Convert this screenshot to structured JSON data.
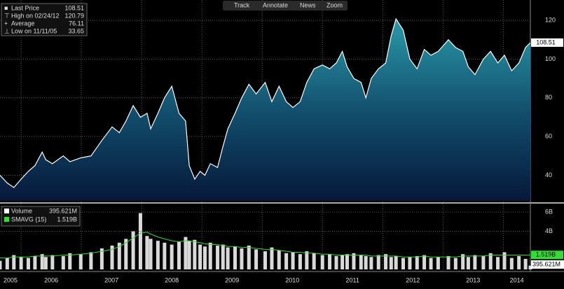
{
  "toolbar": [
    "Track",
    "Annotate",
    "News",
    "Zoom"
  ],
  "chart_data": [
    {
      "type": "area",
      "legend": [
        {
          "label": "Last Price",
          "value": 108.51
        },
        {
          "label": "High on 02/24/12",
          "value": 120.79
        },
        {
          "label": "Average",
          "value": 76.11
        },
        {
          "label": "Low on 11/11/05",
          "value": 33.65
        }
      ],
      "x": [
        2005.65,
        2005.77,
        2005.88,
        2006.0,
        2006.12,
        2006.23,
        2006.35,
        2006.41,
        2006.52,
        2006.7,
        2006.81,
        2006.99,
        2007.16,
        2007.34,
        2007.51,
        2007.63,
        2007.74,
        2007.86,
        2007.98,
        2008.09,
        2008.15,
        2008.27,
        2008.38,
        2008.5,
        2008.62,
        2008.73,
        2008.79,
        2008.88,
        2008.97,
        2009.05,
        2009.14,
        2009.26,
        2009.35,
        2009.43,
        2009.55,
        2009.66,
        2009.78,
        2009.9,
        2010.05,
        2010.16,
        2010.28,
        2010.4,
        2010.51,
        2010.63,
        2010.74,
        2010.86,
        2011.0,
        2011.12,
        2011.23,
        2011.33,
        2011.41,
        2011.52,
        2011.64,
        2011.72,
        2011.81,
        2011.93,
        2012.05,
        2012.14,
        2012.22,
        2012.34,
        2012.45,
        2012.57,
        2012.69,
        2012.8,
        2012.92,
        2013.09,
        2013.21,
        2013.33,
        2013.42,
        2013.53,
        2013.67,
        2013.79,
        2013.91,
        2014.02,
        2014.14,
        2014.26,
        2014.37,
        2014.45
      ],
      "series": [
        {
          "name": "Last Price",
          "color": "#ffffff",
          "values": [
            40,
            36,
            33.65,
            38,
            42,
            45,
            52,
            48,
            46,
            50,
            47,
            49,
            50,
            58,
            65,
            62,
            68,
            76,
            70,
            72,
            64,
            72,
            80,
            86,
            72,
            68,
            45,
            38,
            42,
            40,
            46,
            44,
            55,
            64,
            72,
            80,
            87,
            82,
            88,
            78,
            86,
            78,
            75,
            78,
            88,
            95,
            97,
            95,
            98,
            104,
            96,
            90,
            88,
            80,
            90,
            95,
            98,
            112,
            120.79,
            115,
            100,
            95,
            105,
            102,
            104,
            110,
            106,
            104,
            96,
            92,
            100,
            104,
            98,
            102,
            94,
            98,
            106,
            108.51
          ]
        }
      ],
      "xlim": [
        2005.65,
        2014.45
      ],
      "xticks": [
        2005,
        2006,
        2007,
        2008,
        2009,
        2010,
        2011,
        2012,
        2013,
        2014
      ],
      "ylim": [
        26.8,
        129.8
      ],
      "yticks": [
        40,
        60,
        80,
        100,
        120
      ],
      "grid": true
    },
    {
      "type": "bar",
      "legend": [
        {
          "label": "Volume",
          "value": "395.621M"
        },
        {
          "label": "SMAVG (15)",
          "value": "1.519B"
        }
      ],
      "series": [
        {
          "name": "Volume",
          "color": "#ffffff",
          "values": [
            0.9,
            1.2,
            1.5,
            1.3,
            1.2,
            1.4,
            1.6,
            1.3,
            1.5,
            1.4,
            1.7,
            1.6,
            1.8,
            2.2,
            2.5,
            2.8,
            3.2,
            4.0,
            5.9,
            3.5,
            3.2,
            3.0,
            2.8,
            2.6,
            2.9,
            3.4,
            3.0,
            3.1,
            2.6,
            2.4,
            2.8,
            2.5,
            2.6,
            2.3,
            2.4,
            2.2,
            2.5,
            2.1,
            1.9,
            2.3,
            2.0,
            1.7,
            1.8,
            1.6,
            1.9,
            1.7,
            1.5,
            1.6,
            1.4,
            1.5,
            1.6,
            1.7,
            1.5,
            1.4,
            1.3,
            1.5,
            1.6,
            1.3,
            1.4,
            1.2,
            1.3,
            1.4,
            1.5,
            1.2,
            1.3,
            1.4,
            1.2,
            1.6,
            1.3,
            1.5,
            1.4,
            1.7,
            1.3,
            1.8,
            1.2,
            1.4,
            1.1,
            0.3956
          ]
        },
        {
          "name": "SMAVG (15)",
          "color": "#33dd33",
          "type": "line",
          "values": [
            1.2,
            1.2,
            1.3,
            1.3,
            1.3,
            1.4,
            1.4,
            1.4,
            1.4,
            1.5,
            1.5,
            1.6,
            1.7,
            1.9,
            2.1,
            2.4,
            2.8,
            3.3,
            3.8,
            3.9,
            3.7,
            3.4,
            3.2,
            3.0,
            2.9,
            3.0,
            3.0,
            2.9,
            2.8,
            2.7,
            2.6,
            2.6,
            2.5,
            2.4,
            2.4,
            2.3,
            2.3,
            2.2,
            2.1,
            2.1,
            2.0,
            1.9,
            1.8,
            1.8,
            1.7,
            1.7,
            1.6,
            1.6,
            1.5,
            1.5,
            1.5,
            1.5,
            1.5,
            1.5,
            1.4,
            1.4,
            1.4,
            1.4,
            1.4,
            1.3,
            1.3,
            1.3,
            1.4,
            1.3,
            1.3,
            1.3,
            1.3,
            1.4,
            1.4,
            1.4,
            1.4,
            1.5,
            1.5,
            1.5,
            1.5,
            1.5,
            1.5,
            1.519
          ]
        }
      ],
      "ylim": [
        0,
        6.6
      ],
      "yticks": [
        {
          "value": 4,
          "label": "4B"
        },
        {
          "value": 6,
          "label": "6B"
        }
      ],
      "grid": true
    }
  ]
}
